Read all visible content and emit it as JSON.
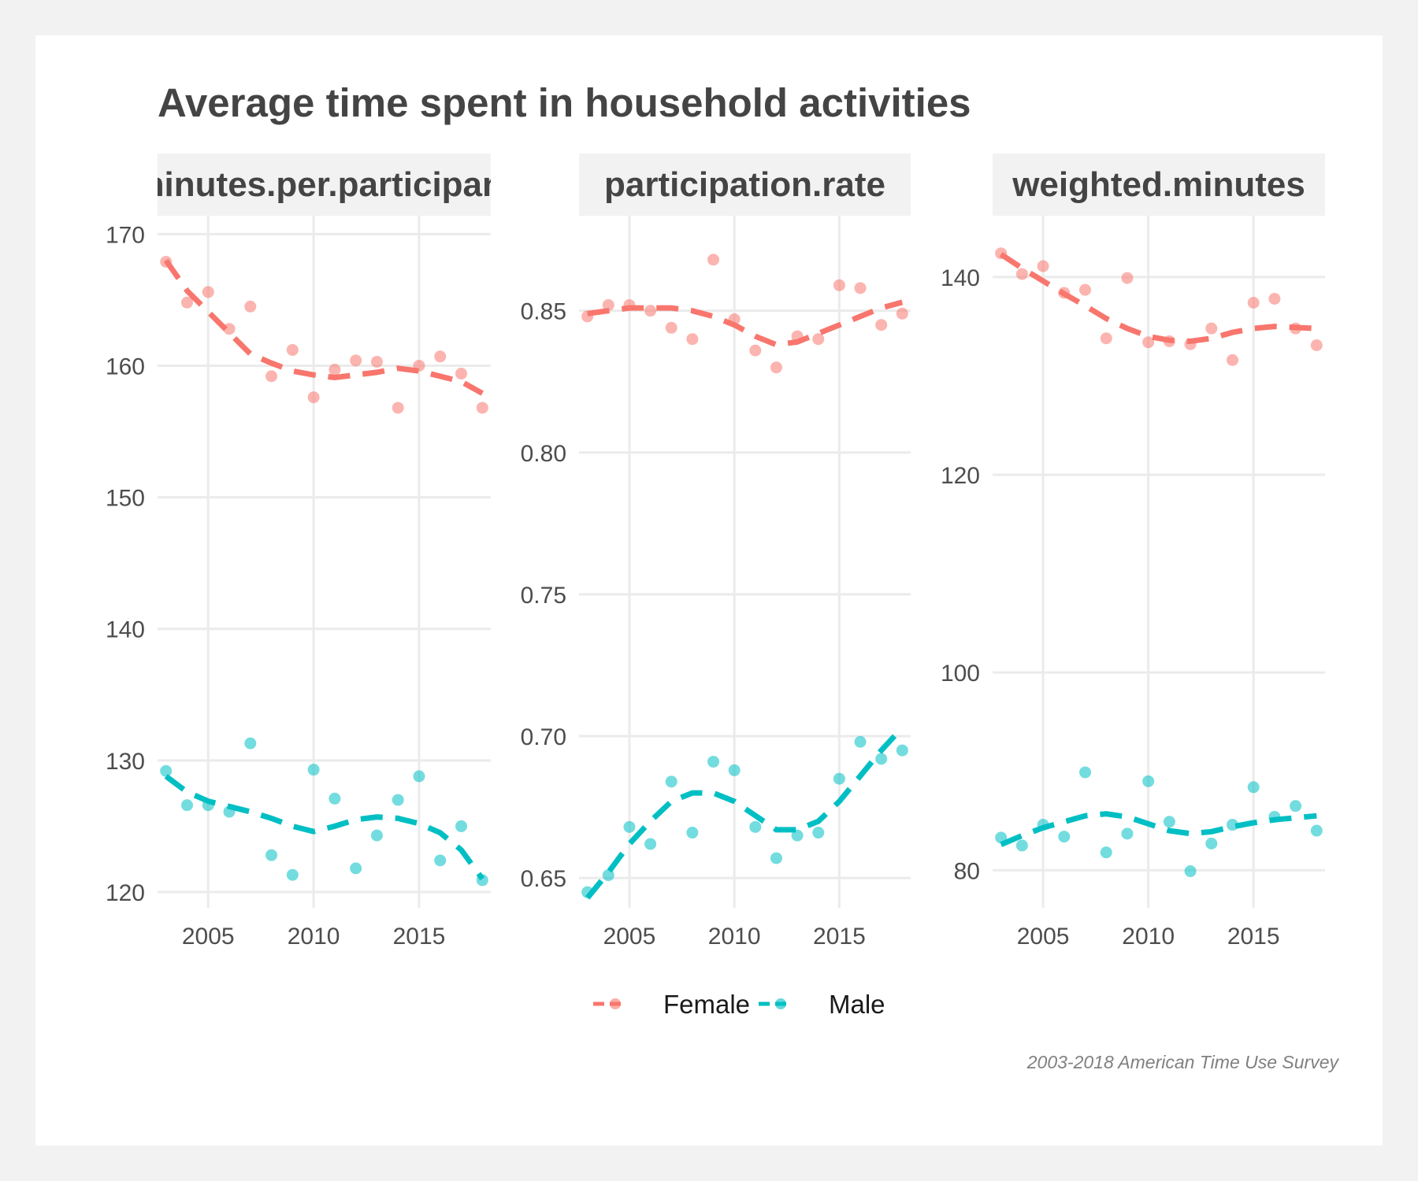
{
  "chart_data": {
    "type": "scatter",
    "title": "Average time spent in household activities",
    "caption": "2003-2018 American Time Use Survey",
    "legend": {
      "position": "bottom",
      "entries": [
        "Female",
        "Male"
      ]
    },
    "colors": {
      "Female": "#F8766D",
      "Male": "#00BFC4",
      "strip": "#f2f2f2",
      "grid": "#ebebeb",
      "background": "#f2f2f2"
    },
    "grid": true,
    "x": [
      2003,
      2004,
      2005,
      2006,
      2007,
      2008,
      2009,
      2010,
      2011,
      2012,
      2013,
      2014,
      2015,
      2016,
      2017,
      2018
    ],
    "panels": [
      {
        "strip": "minutes.per.participant",
        "xlim": [
          2002.6,
          2018.4
        ],
        "xticks": [
          2005,
          2010,
          2015
        ],
        "ylim": [
          118.8,
          171.4
        ],
        "yticks": [
          120,
          130,
          140,
          150,
          160,
          170
        ],
        "series": [
          {
            "name": "Female",
            "values": [
              167.9,
              164.8,
              165.6,
              162.8,
              164.5,
              159.2,
              161.2,
              157.6,
              159.7,
              160.4,
              160.3,
              156.8,
              160.0,
              160.7,
              159.4,
              156.8
            ],
            "trend": [
              168.0,
              165.7,
              164.1,
              162.5,
              160.9,
              160.2,
              159.6,
              159.3,
              159.1,
              159.3,
              159.5,
              159.8,
              159.6,
              159.2,
              158.8,
              157.9
            ]
          },
          {
            "name": "Male",
            "values": [
              129.2,
              126.6,
              126.6,
              126.1,
              131.3,
              122.8,
              121.3,
              129.3,
              127.1,
              121.8,
              124.3,
              127.0,
              128.8,
              122.4,
              125.0,
              120.9
            ],
            "trend": [
              128.8,
              127.6,
              126.9,
              126.5,
              126.1,
              125.6,
              125.0,
              124.6,
              125.0,
              125.5,
              125.7,
              125.6,
              125.2,
              124.5,
              123.2,
              121.0
            ]
          }
        ]
      },
      {
        "strip": "participation.rate",
        "xlim": [
          2002.6,
          2018.4
        ],
        "xticks": [
          2005,
          2010,
          2015
        ],
        "ylim": [
          0.6395,
          0.8835
        ],
        "yticks": [
          0.65,
          0.7,
          0.75,
          0.8,
          0.85
        ],
        "series": [
          {
            "name": "Female",
            "values": [
              0.848,
              0.852,
              0.852,
              0.85,
              0.844,
              0.84,
              0.868,
              0.847,
              0.836,
              0.83,
              0.841,
              0.84,
              0.859,
              0.858,
              0.845,
              0.849
            ],
            "trend": [
              0.849,
              0.85,
              0.851,
              0.851,
              0.851,
              0.85,
              0.848,
              0.845,
              0.841,
              0.838,
              0.839,
              0.842,
              0.845,
              0.848,
              0.851,
              0.853
            ]
          },
          {
            "name": "Male",
            "values": [
              0.645,
              0.651,
              0.668,
              0.662,
              0.684,
              0.666,
              0.691,
              0.688,
              0.668,
              0.657,
              0.665,
              0.666,
              0.685,
              0.698,
              0.692,
              0.695
            ],
            "trend": [
              0.643,
              0.652,
              0.662,
              0.67,
              0.677,
              0.68,
              0.68,
              0.677,
              0.672,
              0.667,
              0.667,
              0.67,
              0.677,
              0.686,
              0.695,
              0.703
            ]
          }
        ]
      },
      {
        "strip": "weighted.minutes",
        "xlim": [
          2002.6,
          2018.4
        ],
        "xticks": [
          2005,
          2010,
          2015
        ],
        "ylim": [
          76.2,
          146.2
        ],
        "yticks": [
          80,
          100,
          120,
          140
        ],
        "series": [
          {
            "name": "Female",
            "values": [
              142.4,
              140.3,
              141.1,
              138.4,
              138.7,
              133.8,
              139.9,
              133.4,
              133.5,
              133.2,
              134.8,
              131.6,
              137.4,
              137.8,
              134.8,
              133.1
            ],
            "trend": [
              142.3,
              140.9,
              139.6,
              138.3,
              137.1,
              135.8,
              134.8,
              134.0,
              133.6,
              133.5,
              133.8,
              134.4,
              134.8,
              135.0,
              134.9,
              134.8
            ]
          },
          {
            "name": "Male",
            "values": [
              83.3,
              82.5,
              84.6,
              83.4,
              89.9,
              81.8,
              83.7,
              89.0,
              84.9,
              79.9,
              82.7,
              84.6,
              88.4,
              85.4,
              86.5,
              84.0
            ],
            "trend": [
              82.6,
              83.5,
              84.3,
              84.9,
              85.5,
              85.7,
              85.4,
              84.7,
              84.0,
              83.7,
              83.9,
              84.4,
              84.8,
              85.1,
              85.3,
              85.5
            ]
          }
        ]
      }
    ]
  }
}
